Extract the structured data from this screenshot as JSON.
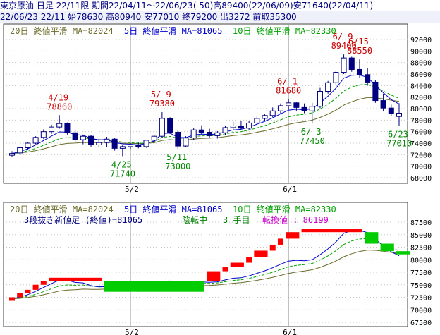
{
  "header": {
    "line1": "東京原油 日足 22/11限 期間22/04/11～22/06/23( 50)高89400(22/06/09)安71640(22/04/11)",
    "line2": "22/06/23 22/11 始78630 高80940 安77010 終79200 出3272 前取35300"
  },
  "colors": {
    "ma20": "#6b6b2a",
    "ma5": "#0000cc",
    "ma10": "#00a000",
    "candle_up_stroke": "#000080",
    "candle_down_fill": "#000080",
    "label_high": "#cc0000",
    "label_low": "#008800",
    "brick_up": "#ff0000",
    "brick_down": "#00cc00",
    "turn_value": "#cc00cc",
    "month_line": "#a0a0a0",
    "grid": "#c8c8c8"
  },
  "chart_data": [
    {
      "type": "candlestick",
      "title": "",
      "legend": [
        {
          "text": "20日 終値平滑 MA=82024",
          "color_key": "ma20"
        },
        {
          "text": "5日 終値平滑 MA=81065",
          "color_key": "ma5"
        },
        {
          "text": "10日 終値平滑 MA=82330",
          "color_key": "ma10"
        }
      ],
      "ylim": [
        68000,
        92000
      ],
      "yticks": [
        68000,
        70000,
        72000,
        74000,
        76000,
        78000,
        80000,
        82000,
        84000,
        86000,
        88000,
        90000,
        92000
      ],
      "xticks": [
        {
          "label": "5/2",
          "index": 15
        },
        {
          "label": "6/1",
          "index": 35
        }
      ],
      "candles": [
        [
          71900,
          72600,
          71640,
          72200
        ],
        [
          72300,
          73400,
          72000,
          73200
        ],
        [
          73200,
          74200,
          72900,
          74000
        ],
        [
          74000,
          75200,
          73800,
          75000
        ],
        [
          75000,
          76400,
          74700,
          76000
        ],
        [
          76000,
          77200,
          75600,
          76800
        ],
        [
          76800,
          78860,
          76500,
          77400
        ],
        [
          77400,
          77600,
          75500,
          75800
        ],
        [
          75800,
          76300,
          74200,
          74600
        ],
        [
          74600,
          75500,
          73800,
          75200
        ],
        [
          75200,
          75400,
          73400,
          73700
        ],
        [
          73700,
          74500,
          73300,
          74100
        ],
        [
          74100,
          75100,
          73300,
          74700
        ],
        [
          74700,
          74900,
          72700,
          73100
        ],
        [
          73100,
          73700,
          71740,
          73400
        ],
        [
          73400,
          74000,
          73000,
          73700
        ],
        [
          73700,
          74200,
          73100,
          73400
        ],
        [
          73400,
          74600,
          73200,
          74500
        ],
        [
          74500,
          75400,
          74000,
          75200
        ],
        [
          75200,
          79380,
          75000,
          78300
        ],
        [
          78300,
          78500,
          75600,
          75900
        ],
        [
          75900,
          76300,
          73000,
          73500
        ],
        [
          73500,
          75200,
          73300,
          74900
        ],
        [
          74900,
          76600,
          74500,
          76300
        ],
        [
          76300,
          77100,
          75500,
          75900
        ],
        [
          75900,
          76500,
          74900,
          75300
        ],
        [
          75300,
          76100,
          74800,
          75800
        ],
        [
          75800,
          77000,
          75400,
          76700
        ],
        [
          76700,
          77700,
          76200,
          77000
        ],
        [
          77000,
          77800,
          76400,
          76600
        ],
        [
          76600,
          77900,
          76300,
          77500
        ],
        [
          77500,
          78600,
          77100,
          78300
        ],
        [
          78300,
          79000,
          77800,
          78800
        ],
        [
          78800,
          80200,
          78500,
          79600
        ],
        [
          79600,
          80900,
          79100,
          80500
        ],
        [
          80500,
          81680,
          79800,
          81000
        ],
        [
          81000,
          81200,
          79600,
          80200
        ],
        [
          80200,
          80900,
          79200,
          79600
        ],
        [
          79600,
          81000,
          77450,
          80400
        ],
        [
          80400,
          83600,
          80100,
          83000
        ],
        [
          83000,
          84800,
          82600,
          84500
        ],
        [
          84500,
          86600,
          84200,
          86300
        ],
        [
          86300,
          89400,
          86000,
          88800
        ],
        [
          88800,
          89000,
          86400,
          86800
        ],
        [
          86800,
          88550,
          85400,
          85900
        ],
        [
          85900,
          87000,
          84000,
          84600
        ],
        [
          84600,
          85000,
          81000,
          81400
        ],
        [
          81400,
          82600,
          79500,
          80100
        ],
        [
          80100,
          80700,
          78700,
          79200
        ],
        [
          78630,
          80940,
          77010,
          79200
        ]
      ],
      "annotations": [
        {
          "date": "4/19",
          "value": "78860",
          "index": 6,
          "kind": "high"
        },
        {
          "date": "4/25",
          "value": "71740",
          "index": 14,
          "kind": "low"
        },
        {
          "date": "5/ 9",
          "value": "79380",
          "index": 19,
          "kind": "high"
        },
        {
          "date": "5/11",
          "value": "73000",
          "index": 21,
          "kind": "low"
        },
        {
          "date": "6/ 1",
          "value": "81680",
          "index": 35,
          "kind": "high"
        },
        {
          "date": "6/ 3",
          "value": "77450",
          "index": 38,
          "kind": "low"
        },
        {
          "date": "6/ 9",
          "value": "89400",
          "index": 42,
          "kind": "high"
        },
        {
          "date": "6/15",
          "value": "88550",
          "index": 44,
          "kind": "high"
        },
        {
          "date": "6/23",
          "value": "77010",
          "index": 49,
          "kind": "low"
        }
      ],
      "ma_values": {
        "ma20": 82024,
        "ma5": 81065,
        "ma10": 82330
      }
    },
    {
      "type": "three-line-break",
      "title": "",
      "legend": [
        {
          "text": "20日 終値平滑 MA=82024",
          "color_key": "ma20"
        },
        {
          "text": "5日 終値平滑 MA=81065",
          "color_key": "ma5"
        },
        {
          "text": "10日 終値平滑 MA=82330",
          "color_key": "ma10"
        }
      ],
      "status": {
        "label": "3段抜き新値足 (終値)=81065",
        "direction": "陰転中",
        "count": "3 手目",
        "turn_label": "転換値 : 86199"
      },
      "ylim": [
        67500,
        87500
      ],
      "yticks": [
        67500,
        70000,
        72500,
        75000,
        77500,
        80000,
        82500,
        85000,
        87500
      ],
      "xticks": [
        {
          "label": "5/2",
          "index": 15
        },
        {
          "label": "6/1",
          "index": 35
        }
      ],
      "bricks": [
        {
          "dir": "up",
          "from": 71800,
          "to": 72500
        },
        {
          "dir": "up",
          "from": 72500,
          "to": 73300
        },
        {
          "dir": "up",
          "from": 73300,
          "to": 74000
        },
        {
          "dir": "up",
          "from": 74000,
          "to": 75000
        },
        {
          "dir": "up",
          "from": 75000,
          "to": 75800
        },
        {
          "dir": "up",
          "from": 75800,
          "to": 76400
        },
        {
          "dir": "down",
          "from": 75800,
          "to": 73600
        },
        {
          "dir": "up",
          "from": 75800,
          "to": 77700
        },
        {
          "dir": "up",
          "from": 77700,
          "to": 78500
        },
        {
          "dir": "up",
          "from": 78500,
          "to": 79400
        },
        {
          "dir": "up",
          "from": 79400,
          "to": 80500
        },
        {
          "dir": "up",
          "from": 80500,
          "to": 81800
        },
        {
          "dir": "up",
          "from": 81800,
          "to": 83000
        },
        {
          "dir": "up",
          "from": 83000,
          "to": 84200
        },
        {
          "dir": "up",
          "from": 84200,
          "to": 85500
        },
        {
          "dir": "up",
          "from": 85500,
          "to": 86200
        },
        {
          "dir": "down",
          "from": 85500,
          "to": 83200
        },
        {
          "dir": "down",
          "from": 83200,
          "to": 81700
        },
        {
          "dir": "down",
          "from": 81700,
          "to": 81065
        }
      ],
      "brick_spans": [
        1,
        1,
        1,
        1,
        1,
        7,
        13,
        2,
        1,
        2,
        1,
        2,
        1,
        1,
        2,
        8,
        2,
        2,
        2
      ]
    }
  ]
}
